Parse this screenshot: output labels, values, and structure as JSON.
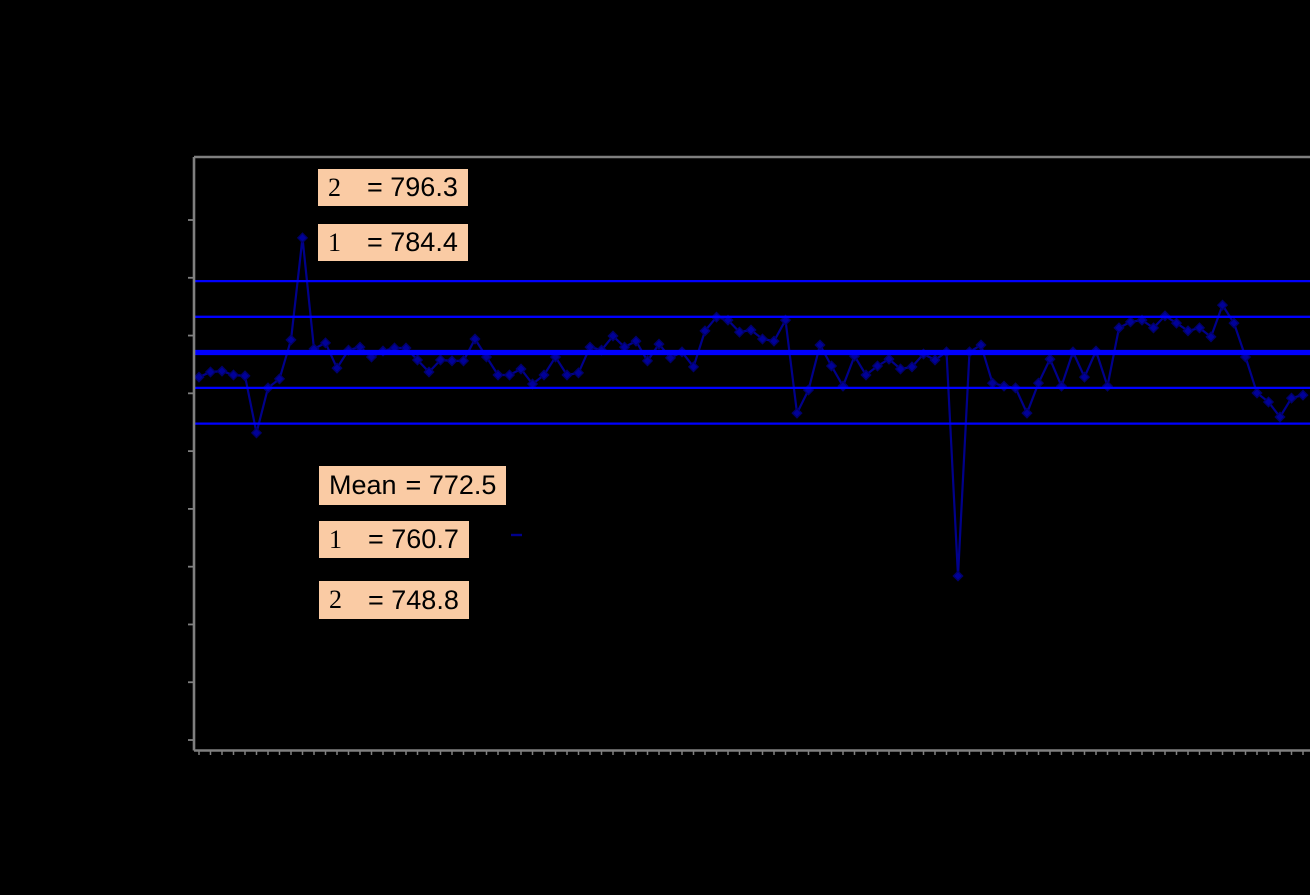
{
  "chart_data": {
    "type": "line",
    "title": "",
    "xlabel": "",
    "ylabel": "",
    "grid": "off",
    "legend": "none",
    "marker": "diamond",
    "n_points": 97,
    "ylim": [
      640,
      838
    ],
    "values": [
      764.3,
      766.0,
      766.3,
      765.0,
      764.7,
      745.7,
      760.7,
      763.7,
      776.7,
      810.7,
      773.7,
      775.7,
      767.3,
      773.3,
      774.3,
      771.0,
      773.0,
      774.0,
      774.0,
      770.0,
      766.0,
      770.0,
      769.7,
      769.7,
      777.0,
      771.0,
      765.0,
      765.0,
      767.0,
      762.0,
      765.0,
      771.0,
      765.0,
      765.7,
      774.3,
      773.3,
      778.0,
      774.3,
      776.3,
      769.7,
      775.3,
      770.7,
      772.7,
      767.7,
      779.7,
      784.3,
      783.3,
      779.3,
      780.0,
      777.0,
      776.3,
      783.3,
      752.3,
      760.0,
      775.0,
      768.0,
      761.3,
      771.3,
      765.0,
      768.0,
      770.3,
      767.0,
      767.7,
      772.0,
      770.0,
      772.7,
      698.0,
      772.7,
      775.0,
      762.3,
      761.3,
      760.7,
      752.3,
      762.3,
      770.3,
      761.3,
      772.7,
      764.3,
      773.0,
      761.3,
      780.7,
      782.7,
      783.3,
      780.7,
      784.7,
      782.3,
      779.7,
      780.7,
      777.7,
      788.3,
      782.3,
      771.0,
      759.0,
      756.0,
      751.0,
      757.3,
      758.3
    ],
    "control_limits": {
      "sigma2_upper": 796.3,
      "sigma1_upper": 784.4,
      "mean": 772.5,
      "sigma1_lower": 760.7,
      "sigma2_lower": 748.8
    },
    "annotations": [
      {
        "sym": "2",
        "eq": "= 796.3"
      },
      {
        "sym": "1",
        "eq": "= 784.4"
      },
      {
        "sym": "Mean",
        "eq": "= 772.5"
      },
      {
        "sym": "1",
        "eq": "= 760.7"
      },
      {
        "sym": "2",
        "eq": "= 748.8"
      }
    ],
    "colors": {
      "background": "#000000",
      "axis": "#7F7F7F",
      "limit_line": "#0000FF",
      "mean_line": "#0000FF",
      "series_line": "#00008B",
      "marker_fill": "#000099",
      "marker_stroke": "#00006B",
      "label_box_fill": "#FACBA4",
      "label_text": "#000000"
    }
  }
}
